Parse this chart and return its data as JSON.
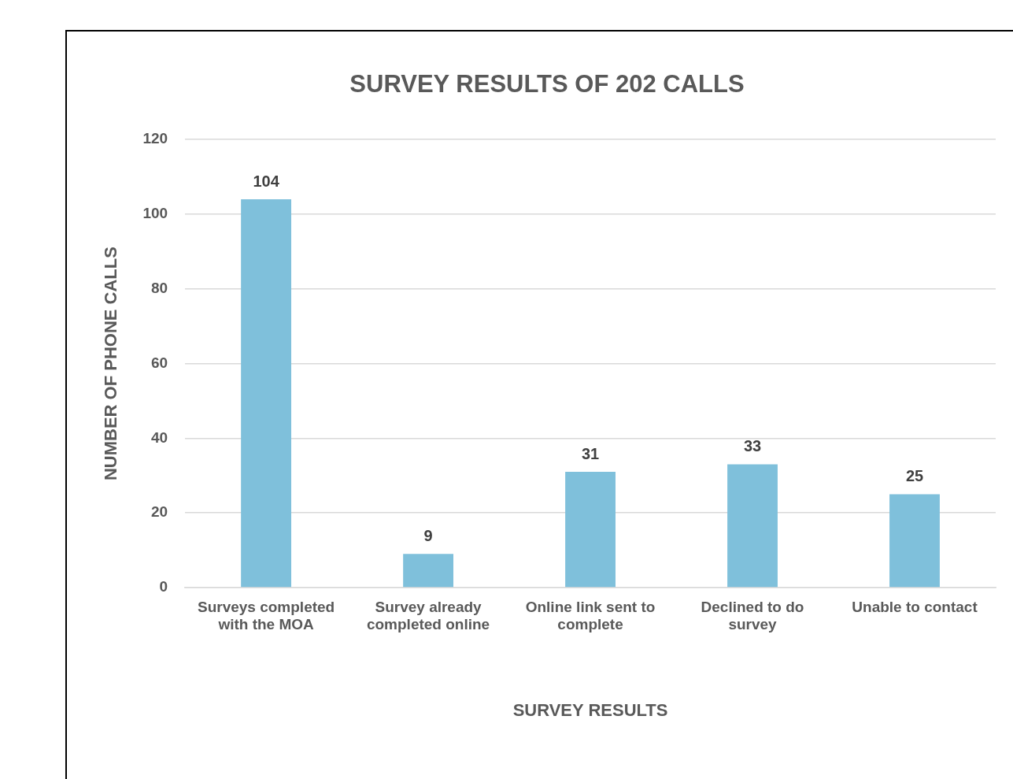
{
  "chart_data": {
    "type": "bar",
    "title": "SURVEY RESULTS OF 202 CALLS",
    "xlabel": "SURVEY RESULTS",
    "ylabel": "NUMBER OF PHONE CALLS",
    "categories": [
      "Surveys completed with the MOA",
      "Survey already completed online",
      "Online link sent to complete",
      "Declined to do survey",
      "Unable to contact"
    ],
    "values": [
      104,
      9,
      31,
      33,
      25
    ],
    "color": "#7fc0db",
    "ylim": [
      0,
      120
    ],
    "yticks": [
      0,
      20,
      40,
      60,
      80,
      100,
      120
    ],
    "grid": "y",
    "legend": false,
    "data_labels": true
  }
}
